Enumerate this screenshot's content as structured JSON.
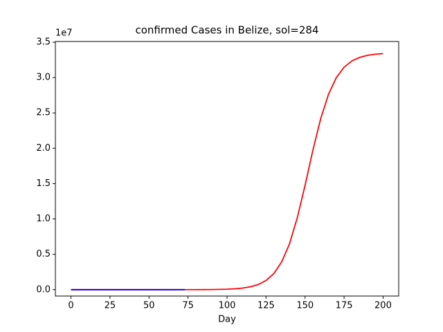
{
  "chart_data": {
    "type": "line",
    "title": "confirmed Cases in Belize, sol=284",
    "xlabel": "Day",
    "y_offset_label": "1e7",
    "series": [
      {
        "color": "#ff0000",
        "x": [
          0,
          5,
          10,
          15,
          20,
          25,
          30,
          35,
          40,
          45,
          50,
          55,
          60,
          65,
          70,
          75,
          80,
          85,
          90,
          95,
          100,
          105,
          110,
          115,
          120,
          125,
          130,
          135,
          140,
          145,
          150,
          155,
          160,
          165,
          170,
          175,
          180,
          185,
          190,
          195,
          200
        ],
        "values": [
          0,
          1,
          2,
          3,
          5,
          9,
          17,
          30,
          54,
          99,
          179,
          325,
          590,
          1070,
          1936,
          3526,
          6368,
          11590,
          20930,
          37980,
          68650,
          124500,
          225800,
          406000,
          727000,
          1298000,
          2279000,
          3923000,
          6467000,
          10150000,
          14760000,
          19710000,
          24170000,
          27620000,
          29980000,
          31460000,
          32350000,
          32850000,
          33140000,
          33300000,
          33390000
        ]
      },
      {
        "color": "#0000ff",
        "x": [
          0,
          10,
          20,
          30,
          40,
          50,
          60,
          73
        ],
        "values": [
          0,
          0,
          0,
          0,
          0,
          0,
          0,
          0
        ]
      }
    ],
    "xlim": [
      -10,
      210
    ],
    "xticks": [
      0,
      25,
      50,
      75,
      100,
      125,
      150,
      175,
      200
    ],
    "ylim": [
      -900000,
      35100000
    ],
    "yticks": [
      {
        "value": 0,
        "label": "0.0"
      },
      {
        "value": 5000000,
        "label": "0.5"
      },
      {
        "value": 10000000,
        "label": "1.0"
      },
      {
        "value": 15000000,
        "label": "1.5"
      },
      {
        "value": 20000000,
        "label": "2.0"
      },
      {
        "value": 25000000,
        "label": "2.5"
      },
      {
        "value": 30000000,
        "label": "3.0"
      },
      {
        "value": 35000000,
        "label": "3.5"
      }
    ]
  }
}
